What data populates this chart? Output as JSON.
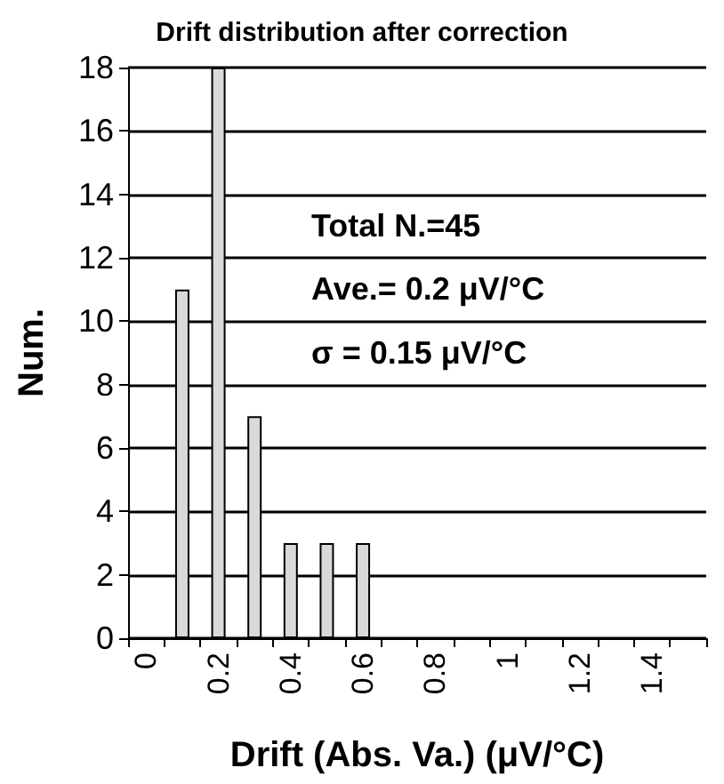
{
  "chart_data": {
    "type": "bar",
    "title": "Drift distribution after correction",
    "xlabel": "Drift (Abs. Va.) (μV/°C)",
    "ylabel": "Num.",
    "categories": [
      "0",
      null,
      "0.2",
      null,
      "0.4",
      null,
      "0.6",
      null,
      "0.8",
      null,
      "1",
      null,
      "1.2",
      null,
      "1.4",
      null
    ],
    "values": [
      0,
      11,
      18,
      7,
      3,
      3,
      3,
      0,
      0,
      0,
      0,
      0,
      0,
      0,
      0,
      0
    ],
    "color": "#d9d9d9",
    "ylim": [
      0,
      18
    ],
    "yticks": [
      0,
      2,
      4,
      6,
      8,
      10,
      12,
      14,
      16,
      18
    ],
    "grid": "y",
    "annotations": [
      "Total N.=45",
      "Ave.= 0.2 μV/°C",
      "σ = 0.15 μV/°C"
    ]
  }
}
